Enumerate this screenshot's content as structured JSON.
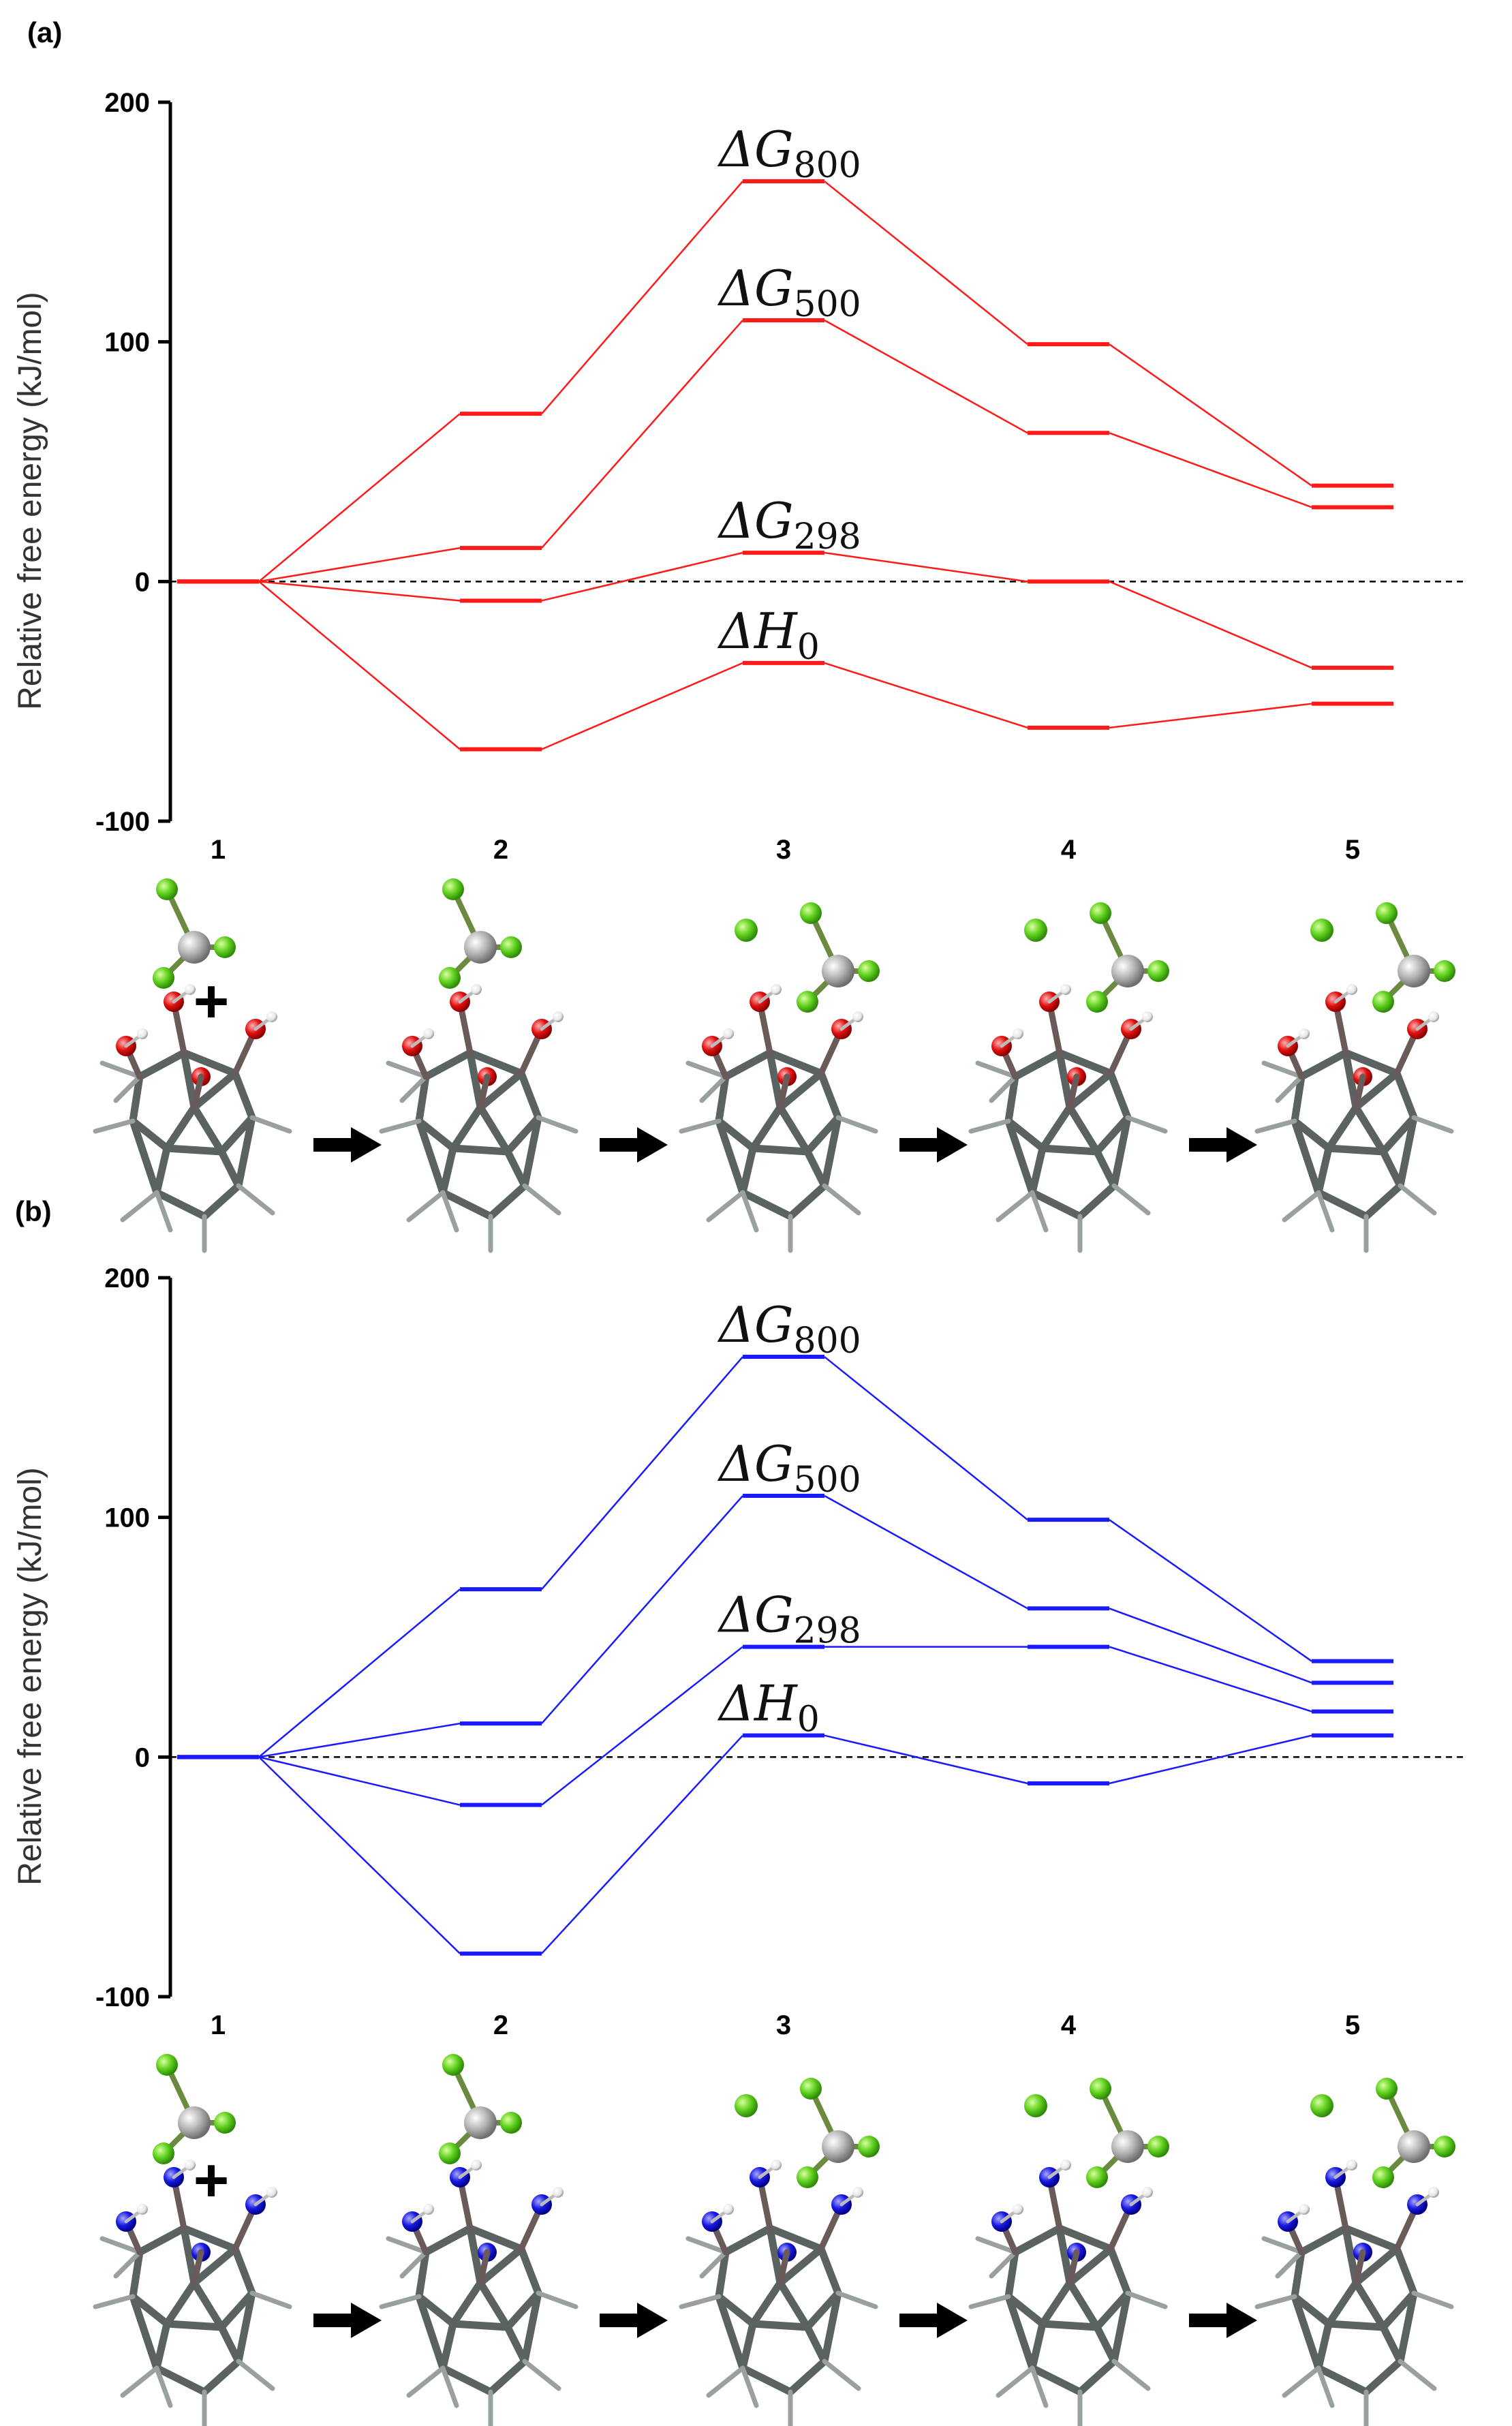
{
  "figure": {
    "panels": [
      {
        "label": "(a)",
        "ylabel": "Relative free energy (kJ/mol)"
      },
      {
        "label": "(b)",
        "ylabel": "Relative free energy (kJ/mol)"
      }
    ],
    "colors": {
      "a": "#ff1a1a",
      "b": "#1a1aff",
      "reference_line": "#000000"
    }
  },
  "chart_data": [
    {
      "type": "line",
      "title": "(a)",
      "xlabel": "",
      "ylabel": "Relative free energy (kJ/mol)",
      "ylim": [
        -100,
        200
      ],
      "yticks": [
        -100,
        0,
        100,
        200
      ],
      "categories": [
        "1",
        "2",
        "3",
        "4",
        "5"
      ],
      "reference_line": 0,
      "series": [
        {
          "name": "ΔG800",
          "symbol": "ΔG",
          "subscript": "800",
          "values": [
            0,
            70,
            167,
            99,
            40
          ]
        },
        {
          "name": "ΔG500",
          "symbol": "ΔG",
          "subscript": "500",
          "values": [
            0,
            14,
            109,
            62,
            31
          ]
        },
        {
          "name": "ΔG298",
          "symbol": "ΔG",
          "subscript": "298",
          "values": [
            0,
            -8,
            12,
            0,
            -36
          ]
        },
        {
          "name": "ΔH0",
          "symbol": "ΔH",
          "subscript": "0",
          "values": [
            0,
            -70,
            -34,
            -61,
            -51
          ]
        }
      ]
    },
    {
      "type": "line",
      "title": "(b)",
      "xlabel": "",
      "ylabel": "Relative free energy (kJ/mol)",
      "ylim": [
        -100,
        200
      ],
      "yticks": [
        -100,
        0,
        100,
        200
      ],
      "categories": [
        "1",
        "2",
        "3",
        "4",
        "5"
      ],
      "reference_line": 0,
      "series": [
        {
          "name": "ΔG800",
          "symbol": "ΔG",
          "subscript": "800",
          "values": [
            0,
            70,
            167,
            99,
            40
          ]
        },
        {
          "name": "ΔG500",
          "symbol": "ΔG",
          "subscript": "500",
          "values": [
            0,
            14,
            109,
            62,
            31
          ]
        },
        {
          "name": "ΔG298",
          "symbol": "ΔG",
          "subscript": "298",
          "values": [
            0,
            -20,
            46,
            46,
            19
          ]
        },
        {
          "name": "ΔH0",
          "symbol": "ΔH",
          "subscript": "0",
          "values": [
            0,
            -82,
            9,
            -11,
            9
          ]
        }
      ]
    }
  ],
  "reaction_scheme": {
    "plus_sign": "+"
  }
}
